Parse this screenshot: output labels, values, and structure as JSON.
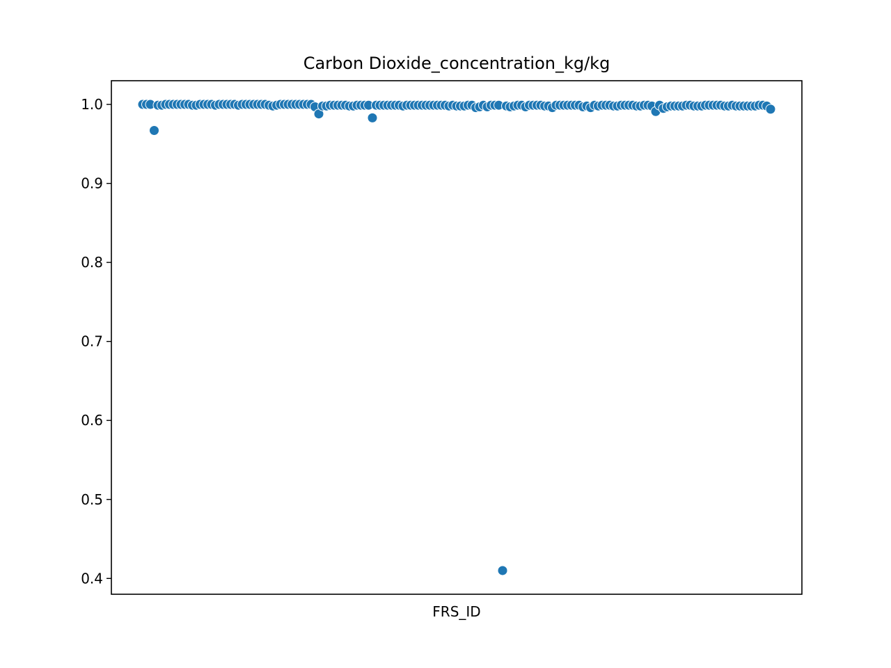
{
  "chart_data": {
    "type": "scatter",
    "title": "Carbon Dioxide_concentration_kg/kg",
    "xlabel": "FRS_ID",
    "ylabel": "",
    "ylim": [
      0.38,
      1.03
    ],
    "yticks": [
      0.4,
      0.5,
      0.6,
      0.7,
      0.8,
      0.9,
      1.0
    ],
    "ytick_labels": [
      "0.4",
      "0.5",
      "0.6",
      "0.7",
      "0.8",
      "0.9",
      "1.0"
    ],
    "x_tick_labels_shown": false,
    "grid": false,
    "legend": "none",
    "marker_color": "#1f77b4",
    "series": [
      {
        "values": [
          1.0,
          1.0,
          1.0,
          0.967,
          0.999,
          0.999,
          1.0,
          1.0,
          1.0,
          1.0,
          1.0,
          1.0,
          1.0,
          0.999,
          0.999,
          1.0,
          1.0,
          1.0,
          1.0,
          0.999,
          1.0,
          1.0,
          1.0,
          1.0,
          1.0,
          0.999,
          1.0,
          1.0,
          1.0,
          1.0,
          1.0,
          1.0,
          1.0,
          0.999,
          0.998,
          0.999,
          1.0,
          1.0,
          1.0,
          1.0,
          1.0,
          1.0,
          1.0,
          1.0,
          1.0,
          0.997,
          0.988,
          0.998,
          0.998,
          0.999,
          0.999,
          0.999,
          0.999,
          0.999,
          0.998,
          0.998,
          0.999,
          0.999,
          0.999,
          0.999,
          0.983,
          0.999,
          0.999,
          0.999,
          0.999,
          0.999,
          0.999,
          0.999,
          0.998,
          0.999,
          0.999,
          0.999,
          0.999,
          0.999,
          0.999,
          0.999,
          0.999,
          0.999,
          0.999,
          0.999,
          0.998,
          0.999,
          0.998,
          0.998,
          0.998,
          0.999,
          0.999,
          0.996,
          0.997,
          0.999,
          0.997,
          0.999,
          0.999,
          0.999,
          0.41,
          0.998,
          0.997,
          0.998,
          0.999,
          0.999,
          0.997,
          0.999,
          0.999,
          0.999,
          0.999,
          0.998,
          0.998,
          0.996,
          0.999,
          0.999,
          0.999,
          0.999,
          0.999,
          0.999,
          0.999,
          0.997,
          0.998,
          0.996,
          0.999,
          0.998,
          0.999,
          0.999,
          0.999,
          0.998,
          0.998,
          0.999,
          0.999,
          0.999,
          0.999,
          0.998,
          0.998,
          0.999,
          0.999,
          0.998,
          0.991,
          0.999,
          0.995,
          0.997,
          0.998,
          0.998,
          0.998,
          0.998,
          0.999,
          0.999,
          0.998,
          0.998,
          0.998,
          0.999,
          0.999,
          0.999,
          0.999,
          0.999,
          0.998,
          0.998,
          0.999,
          0.998,
          0.998,
          0.998,
          0.998,
          0.998,
          0.998,
          0.999,
          0.999,
          0.998,
          0.994
        ]
      }
    ]
  }
}
